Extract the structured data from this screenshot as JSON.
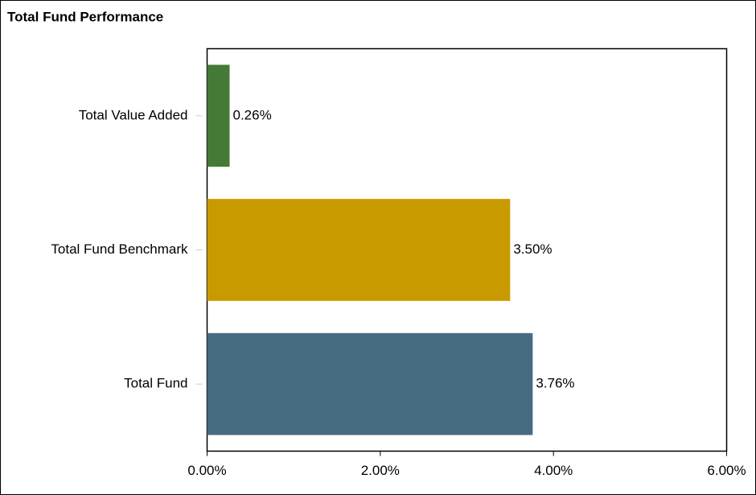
{
  "chart_data": {
    "type": "bar",
    "orientation": "horizontal",
    "title": "Total Fund Performance",
    "categories": [
      "Total Value Added",
      "Total Fund Benchmark",
      "Total Fund"
    ],
    "values": [
      0.26,
      3.5,
      3.76
    ],
    "value_labels": [
      "0.26%",
      "3.50%",
      "3.76%"
    ],
    "colors": [
      "#447a35",
      "#c99a00",
      "#476b80"
    ],
    "xlim": [
      0,
      6
    ],
    "xticks": [
      {
        "value": 0,
        "label": "0.00%"
      },
      {
        "value": 2,
        "label": "2.00%"
      },
      {
        "value": 4,
        "label": "4.00%"
      },
      {
        "value": 6,
        "label": "6.00%"
      }
    ],
    "grid": false
  }
}
